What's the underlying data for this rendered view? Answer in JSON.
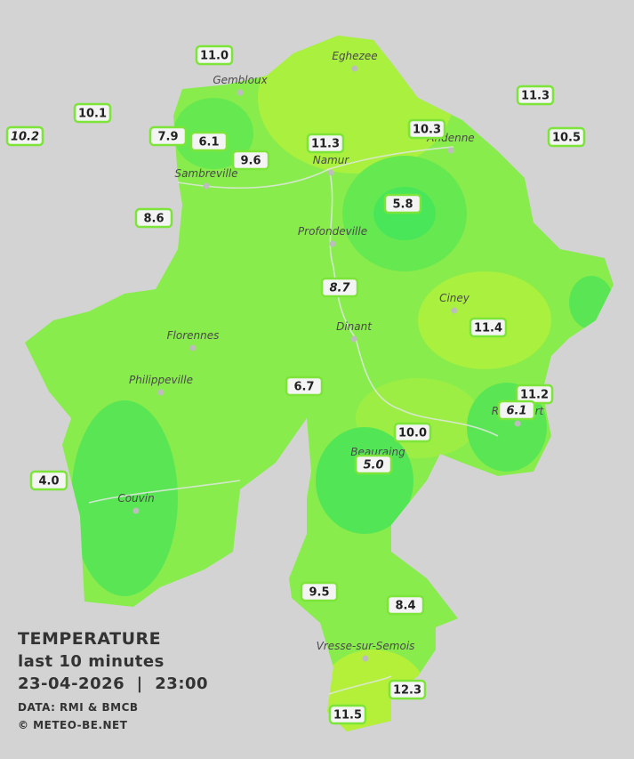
{
  "map": {
    "towns": [
      "Eghezee",
      "Gembloux",
      "Andenne",
      "Namur",
      "Sambreville",
      "Profondeville",
      "Ciney",
      "Dinant",
      "Florennes",
      "Philippeville",
      "Rochefort",
      "Beauraing",
      "Couvin",
      "Vresse-sur-Semois"
    ],
    "stations": [
      {
        "value": "11.0"
      },
      {
        "value": "10.1"
      },
      {
        "value": "10.2",
        "italic": true
      },
      {
        "value": "7.9"
      },
      {
        "value": "6.1"
      },
      {
        "value": "9.6"
      },
      {
        "value": "11.3"
      },
      {
        "value": "10.3"
      },
      {
        "value": "11.3"
      },
      {
        "value": "10.5"
      },
      {
        "value": "8.6"
      },
      {
        "value": "5.8"
      },
      {
        "value": "8.7",
        "italic": true
      },
      {
        "value": "11.4"
      },
      {
        "value": "6.7"
      },
      {
        "value": "11.2"
      },
      {
        "value": "6.1",
        "italic": true
      },
      {
        "value": "10.0"
      },
      {
        "value": "5.0",
        "italic": true
      },
      {
        "value": "4.0"
      },
      {
        "value": "9.5"
      },
      {
        "value": "8.4"
      },
      {
        "value": "12.3"
      },
      {
        "value": "11.5"
      }
    ],
    "legend": {
      "heading": "TEMPERATURE",
      "subtitle": "last 10 minutes",
      "datetime": "23-04-2026  |  23:00",
      "source": "DATA: RMI & BMCB",
      "credit": "© METEO-BE.NET"
    }
  }
}
